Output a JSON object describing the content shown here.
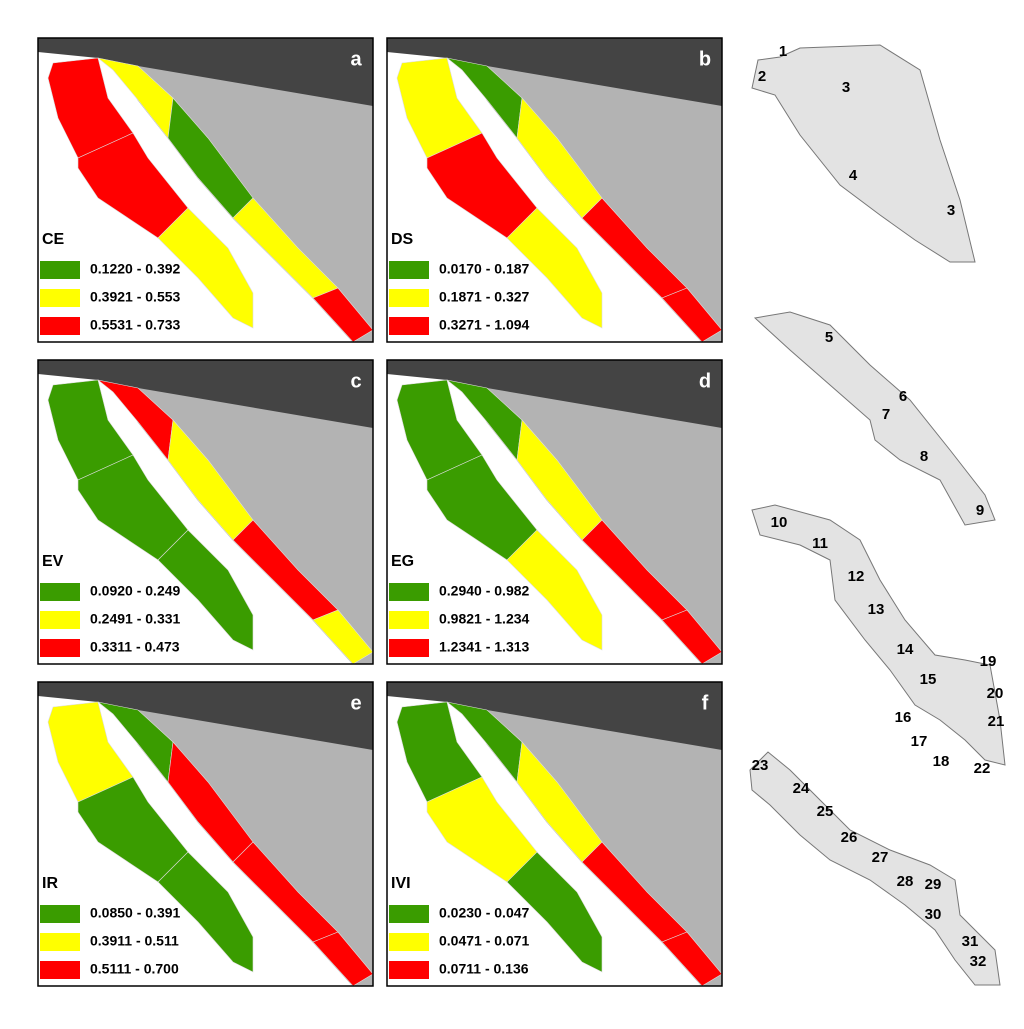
{
  "panels": [
    {
      "letter": "a",
      "indicator": "CE",
      "legend": [
        {
          "range": "0.1220 - 0.392",
          "color": "#3a9c00"
        },
        {
          "range": "0.3921 - 0.553",
          "color": "#ffff00"
        },
        {
          "range": "0.5531 - 0.733",
          "color": "#ff0000"
        }
      ]
    },
    {
      "letter": "b",
      "indicator": "DS",
      "legend": [
        {
          "range": "0.0170 - 0.187",
          "color": "#3a9c00"
        },
        {
          "range": "0.1871 - 0.327",
          "color": "#ffff00"
        },
        {
          "range": "0.3271 - 1.094",
          "color": "#ff0000"
        }
      ]
    },
    {
      "letter": "c",
      "indicator": "EV",
      "legend": [
        {
          "range": "0.0920 - 0.249",
          "color": "#3a9c00"
        },
        {
          "range": "0.2491 - 0.331",
          "color": "#ffff00"
        },
        {
          "range": "0.3311 - 0.473",
          "color": "#ff0000"
        }
      ]
    },
    {
      "letter": "d",
      "indicator": "EG",
      "legend": [
        {
          "range": "0.2940 - 0.982",
          "color": "#3a9c00"
        },
        {
          "range": "0.9821 - 1.234",
          "color": "#ffff00"
        },
        {
          "range": "1.2341 - 1.313",
          "color": "#ff0000"
        }
      ]
    },
    {
      "letter": "e",
      "indicator": "IR",
      "legend": [
        {
          "range": "0.0850 - 0.391",
          "color": "#3a9c00"
        },
        {
          "range": "0.3911 - 0.511",
          "color": "#ffff00"
        },
        {
          "range": "0.5111 - 0.700",
          "color": "#ff0000"
        }
      ]
    },
    {
      "letter": "f",
      "indicator": "IVI",
      "legend": [
        {
          "range": "0.0230 - 0.047",
          "color": "#3a9c00"
        },
        {
          "range": "0.0471 - 0.071",
          "color": "#ffff00"
        },
        {
          "range": "0.0711 - 0.136",
          "color": "#ff0000"
        }
      ]
    }
  ],
  "region_labels": [
    "1",
    "2",
    "3",
    "4",
    "3",
    "5",
    "6",
    "7",
    "8",
    "9",
    "10",
    "11",
    "12",
    "13",
    "14",
    "15",
    "16",
    "17",
    "18",
    "19",
    "20",
    "21",
    "22",
    "23",
    "24",
    "25",
    "26",
    "27",
    "28",
    "29",
    "30",
    "31",
    "32"
  ]
}
